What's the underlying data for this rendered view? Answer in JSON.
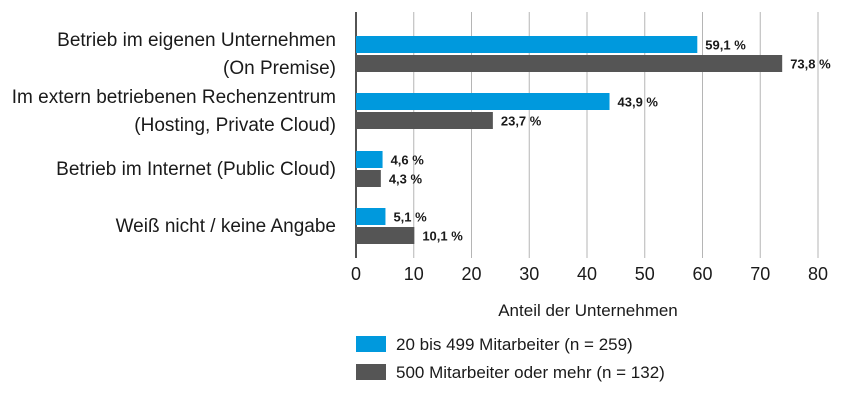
{
  "chart_data": {
    "type": "bar",
    "orientation": "horizontal",
    "categories": [
      [
        "Betrieb im eigenen Unternehmen",
        "(On Premise)"
      ],
      [
        "Im extern betriebenen Rechenzentrum",
        "(Hosting, Private Cloud)"
      ],
      [
        "Betrieb im Internet (Public Cloud)"
      ],
      [
        "Weiß nicht / keine Angabe"
      ]
    ],
    "series": [
      {
        "name": "20 bis 499 Mitarbeiter (n = 259)",
        "color": "#0099dd",
        "values": [
          59.1,
          43.9,
          4.6,
          5.1
        ],
        "labels": [
          "59,1 %",
          "43,9 %",
          "4,6 %",
          "5,1 %"
        ]
      },
      {
        "name": "500 Mitarbeiter oder mehr (n = 132)",
        "color": "#555555",
        "values": [
          73.8,
          23.7,
          4.3,
          10.1
        ],
        "labels": [
          "73,8 %",
          "23,7 %",
          "4,3 %",
          "10,1 %"
        ]
      }
    ],
    "xlabel": "Anteil der Unternehmen",
    "xlim": [
      0,
      80
    ],
    "xticks": [
      "0",
      "10",
      "20",
      "30",
      "40",
      "50",
      "60",
      "70",
      "80"
    ],
    "grid": true,
    "legend_position": "bottom"
  }
}
